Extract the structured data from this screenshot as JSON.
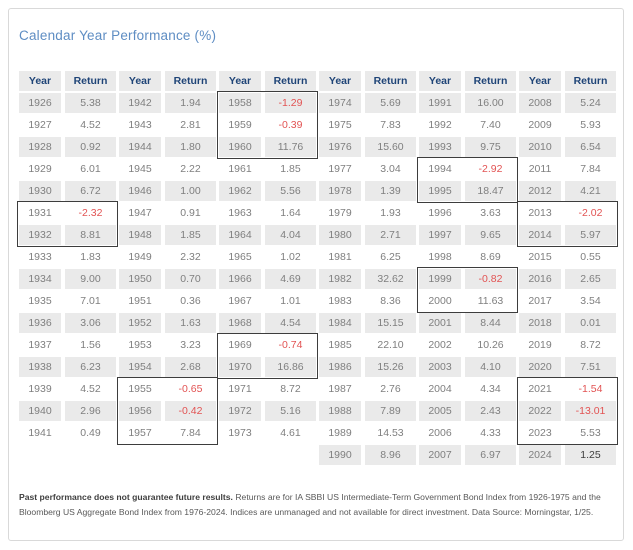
{
  "title": "Calendar Year Performance (%)",
  "colors": {
    "title_blue": "#5e8dc3",
    "header_navy": "#1f4477",
    "cell_gray_bg": "#eaeaea",
    "data_gray": "#7f7f7f",
    "negative_red": "#e25353",
    "highlight_border": "#3d3d3d",
    "card_border": "#d9d9d9"
  },
  "footnote": {
    "bold": "Past performance does not guarantee future results.",
    "rest": " Returns are for IA SBBI US Intermediate-Term Government Bond Index from 1926-1975 and the Bloomberg US Aggregate Bond Index from 1976-2024. Indices are unmanaged and not available for direct investment. Data Source: Morningstar, 1/25."
  },
  "chart_data": {
    "type": "table",
    "title": "Calendar Year Performance (%)",
    "header": {
      "year": "Year",
      "return": "Return"
    },
    "columns": [
      {
        "rows": [
          {
            "year": "1926",
            "return": "5.38"
          },
          {
            "year": "1927",
            "return": "4.52"
          },
          {
            "year": "1928",
            "return": "0.92"
          },
          {
            "year": "1929",
            "return": "6.01"
          },
          {
            "year": "1930",
            "return": "6.72"
          },
          {
            "year": "1931",
            "return": "-2.32"
          },
          {
            "year": "1932",
            "return": "8.81"
          },
          {
            "year": "1933",
            "return": "1.83"
          },
          {
            "year": "1934",
            "return": "9.00"
          },
          {
            "year": "1935",
            "return": "7.01"
          },
          {
            "year": "1936",
            "return": "3.06"
          },
          {
            "year": "1937",
            "return": "1.56"
          },
          {
            "year": "1938",
            "return": "6.23"
          },
          {
            "year": "1939",
            "return": "4.52"
          },
          {
            "year": "1940",
            "return": "2.96"
          },
          {
            "year": "1941",
            "return": "0.49"
          }
        ],
        "boxes": [
          {
            "from": "1931",
            "to": "1932"
          }
        ]
      },
      {
        "rows": [
          {
            "year": "1942",
            "return": "1.94"
          },
          {
            "year": "1943",
            "return": "2.81"
          },
          {
            "year": "1944",
            "return": "1.80"
          },
          {
            "year": "1945",
            "return": "2.22"
          },
          {
            "year": "1946",
            "return": "1.00"
          },
          {
            "year": "1947",
            "return": "0.91"
          },
          {
            "year": "1948",
            "return": "1.85"
          },
          {
            "year": "1949",
            "return": "2.32"
          },
          {
            "year": "1950",
            "return": "0.70"
          },
          {
            "year": "1951",
            "return": "0.36"
          },
          {
            "year": "1952",
            "return": "1.63"
          },
          {
            "year": "1953",
            "return": "3.23"
          },
          {
            "year": "1954",
            "return": "2.68"
          },
          {
            "year": "1955",
            "return": "-0.65"
          },
          {
            "year": "1956",
            "return": "-0.42"
          },
          {
            "year": "1957",
            "return": "7.84"
          }
        ],
        "boxes": [
          {
            "from": "1955",
            "to": "1957"
          }
        ]
      },
      {
        "rows": [
          {
            "year": "1958",
            "return": "-1.29"
          },
          {
            "year": "1959",
            "return": "-0.39"
          },
          {
            "year": "1960",
            "return": "11.76"
          },
          {
            "year": "1961",
            "return": "1.85"
          },
          {
            "year": "1962",
            "return": "5.56"
          },
          {
            "year": "1963",
            "return": "1.64"
          },
          {
            "year": "1964",
            "return": "4.04"
          },
          {
            "year": "1965",
            "return": "1.02"
          },
          {
            "year": "1966",
            "return": "4.69"
          },
          {
            "year": "1967",
            "return": "1.01"
          },
          {
            "year": "1968",
            "return": "4.54"
          },
          {
            "year": "1969",
            "return": "-0.74"
          },
          {
            "year": "1970",
            "return": "16.86"
          },
          {
            "year": "1971",
            "return": "8.72"
          },
          {
            "year": "1972",
            "return": "5.16"
          },
          {
            "year": "1973",
            "return": "4.61"
          }
        ],
        "boxes": [
          {
            "from": "1958",
            "to": "1960"
          },
          {
            "from": "1969",
            "to": "1970"
          }
        ]
      },
      {
        "rows": [
          {
            "year": "1974",
            "return": "5.69"
          },
          {
            "year": "1975",
            "return": "7.83"
          },
          {
            "year": "1976",
            "return": "15.60"
          },
          {
            "year": "1977",
            "return": "3.04"
          },
          {
            "year": "1978",
            "return": "1.39"
          },
          {
            "year": "1979",
            "return": "1.93"
          },
          {
            "year": "1980",
            "return": "2.71"
          },
          {
            "year": "1981",
            "return": "6.25"
          },
          {
            "year": "1982",
            "return": "32.62"
          },
          {
            "year": "1983",
            "return": "8.36"
          },
          {
            "year": "1984",
            "return": "15.15"
          },
          {
            "year": "1985",
            "return": "22.10"
          },
          {
            "year": "1986",
            "return": "15.26"
          },
          {
            "year": "1987",
            "return": "2.76"
          },
          {
            "year": "1988",
            "return": "7.89"
          },
          {
            "year": "1989",
            "return": "14.53"
          },
          {
            "year": "1990",
            "return": "8.96"
          }
        ],
        "boxes": []
      },
      {
        "rows": [
          {
            "year": "1991",
            "return": "16.00"
          },
          {
            "year": "1992",
            "return": "7.40"
          },
          {
            "year": "1993",
            "return": "9.75"
          },
          {
            "year": "1994",
            "return": "-2.92"
          },
          {
            "year": "1995",
            "return": "18.47"
          },
          {
            "year": "1996",
            "return": "3.63"
          },
          {
            "year": "1997",
            "return": "9.65"
          },
          {
            "year": "1998",
            "return": "8.69"
          },
          {
            "year": "1999",
            "return": "-0.82"
          },
          {
            "year": "2000",
            "return": "11.63"
          },
          {
            "year": "2001",
            "return": "8.44"
          },
          {
            "year": "2002",
            "return": "10.26"
          },
          {
            "year": "2003",
            "return": "4.10"
          },
          {
            "year": "2004",
            "return": "4.34"
          },
          {
            "year": "2005",
            "return": "2.43"
          },
          {
            "year": "2006",
            "return": "4.33"
          },
          {
            "year": "2007",
            "return": "6.97"
          }
        ],
        "boxes": [
          {
            "from": "1994",
            "to": "1995"
          },
          {
            "from": "1999",
            "to": "2000"
          }
        ]
      },
      {
        "rows": [
          {
            "year": "2008",
            "return": "5.24"
          },
          {
            "year": "2009",
            "return": "5.93"
          },
          {
            "year": "2010",
            "return": "6.54"
          },
          {
            "year": "2011",
            "return": "7.84"
          },
          {
            "year": "2012",
            "return": "4.21"
          },
          {
            "year": "2013",
            "return": "-2.02"
          },
          {
            "year": "2014",
            "return": "5.97"
          },
          {
            "year": "2015",
            "return": "0.55"
          },
          {
            "year": "2016",
            "return": "2.65"
          },
          {
            "year": "2017",
            "return": "3.54"
          },
          {
            "year": "2018",
            "return": "0.01"
          },
          {
            "year": "2019",
            "return": "8.72"
          },
          {
            "year": "2020",
            "return": "7.51"
          },
          {
            "year": "2021",
            "return": "-1.54"
          },
          {
            "year": "2022",
            "return": "-13.01"
          },
          {
            "year": "2023",
            "return": "5.53"
          },
          {
            "year": "2024",
            "return": "1.25",
            "dark": true
          }
        ],
        "boxes": [
          {
            "from": "2013",
            "to": "2014"
          },
          {
            "from": "2021",
            "to": "2023"
          }
        ]
      }
    ]
  }
}
